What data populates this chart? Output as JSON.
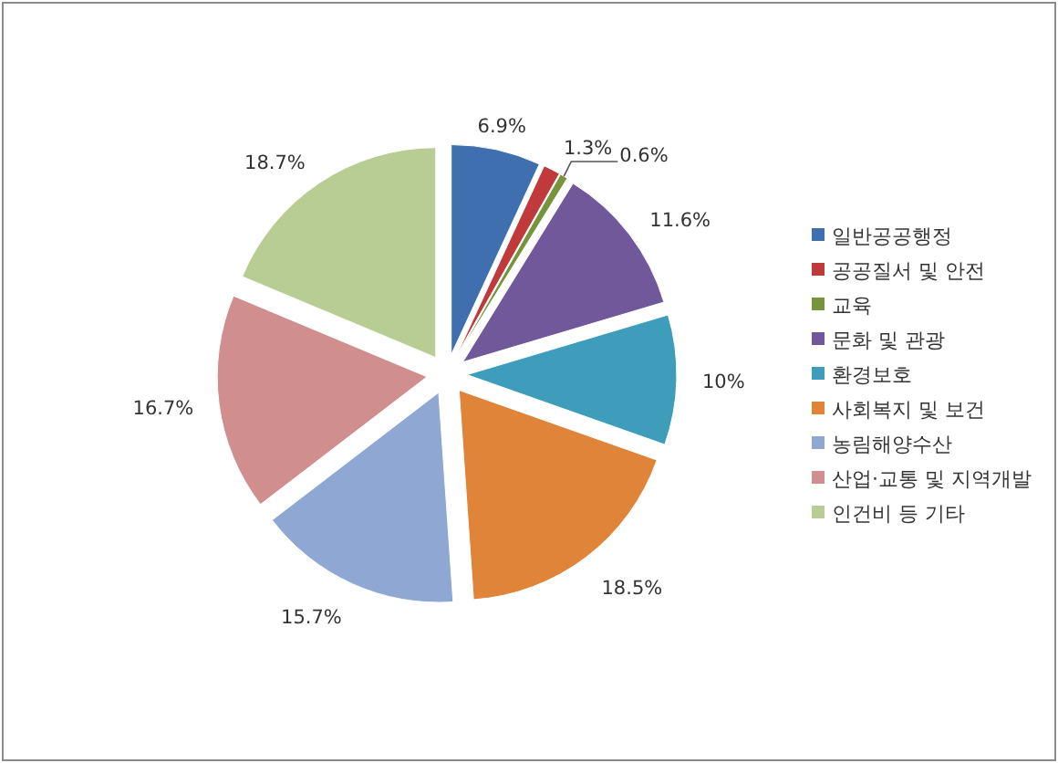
{
  "chart_data": {
    "type": "pie",
    "categories": [
      "일반공공행정",
      "공공질서 및 안전",
      "교육",
      "문화 및 관광",
      "환경보호",
      "사회복지 및 보건",
      "농림해양수산",
      "산업·교통 및 지역개발",
      "인건비 등 기타"
    ],
    "values": [
      6.9,
      1.3,
      0.6,
      11.6,
      10,
      18.5,
      15.7,
      16.7,
      18.7
    ],
    "value_labels": [
      "6.9%",
      "1.3%",
      "0.6%",
      "11.6%",
      "10%",
      "18.5%",
      "15.7%",
      "16.7%",
      "18.7%"
    ],
    "colors": [
      "#3f6fae",
      "#c0393b",
      "#77933c",
      "#71589a",
      "#3d9dbb",
      "#e0843a",
      "#8ea8d3",
      "#d08f8e",
      "#b7cd94"
    ],
    "legend": "right"
  }
}
